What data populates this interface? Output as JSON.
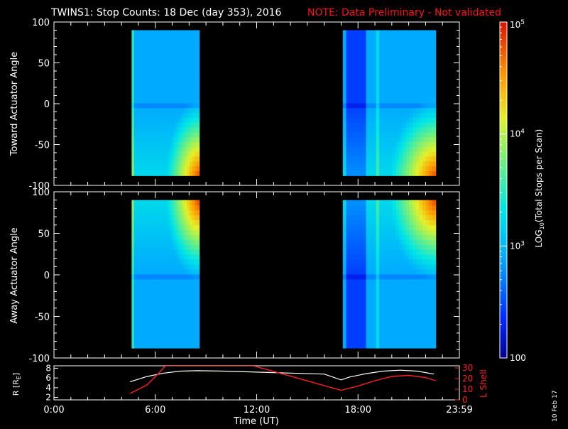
{
  "title": "TWINS1: Stop Counts: 18 Dec (day 353), 2016",
  "note": "NOTE: Data Preliminary - Not validated",
  "colors": {
    "background": "#000000",
    "axis": "#ffffff",
    "note": "#ff1010",
    "r_line": "#ffffff",
    "lshell_line": "#ff2020"
  },
  "colorbar": {
    "label": "LOG10(Total Stops per Scan)",
    "label_main": "LOG",
    "label_sub": "10",
    "label_rest": "(Total Stops per Scan)",
    "tick_labels": [
      "10",
      "10",
      "10",
      "100"
    ],
    "tick_exponents": [
      "5",
      "4",
      "3",
      ""
    ],
    "scale": "log",
    "range": [
      100,
      100000
    ]
  },
  "date_stamp": "10 Feb 17",
  "chart_data": [
    {
      "type": "heatmap",
      "panel": "top",
      "ylabel": "Toward Actuator Angle",
      "ylim": [
        -100,
        100
      ],
      "yticks": [
        "100",
        "50",
        "0",
        "-50",
        "-100"
      ],
      "xlim_hours": [
        0,
        24
      ],
      "data_blocks_hours": [
        [
          4.6,
          8.6
        ],
        [
          17.1,
          22.6
        ]
      ],
      "angle_range": [
        -88,
        90
      ],
      "description_values": "log10 stop counts approx 2.5-5, highest near -80 deg end of each block"
    },
    {
      "type": "heatmap",
      "panel": "middle",
      "ylabel": "Away Actuator Angle",
      "ylim": [
        -100,
        100
      ],
      "yticks": [
        "100",
        "50",
        "0",
        "-50",
        "-100"
      ],
      "xlim_hours": [
        0,
        24
      ],
      "data_blocks_hours": [
        [
          4.6,
          8.6
        ],
        [
          17.1,
          22.6
        ]
      ],
      "angle_range": [
        -88,
        90
      ]
    },
    {
      "type": "line",
      "panel": "bottom",
      "ylabel_left": "R [RE]",
      "ylabel_left_main": "R [R",
      "ylabel_left_sub": "E",
      "ylabel_left_end": "]",
      "ylabel_right": "L Shell",
      "yticks_left": [
        "8",
        "6",
        "4",
        "2"
      ],
      "ylim_left": [
        1.5,
        8.5
      ],
      "yticks_right": [
        "30",
        "20",
        "10",
        "0"
      ],
      "ylim_right": [
        0,
        32
      ],
      "xlabel": "Time (UT)",
      "xtick_labels": [
        "0:00",
        "6:00",
        "12:00",
        "18:00",
        "23:59"
      ],
      "x_ticks_hours": [
        0,
        6,
        12,
        18,
        24
      ],
      "series": [
        {
          "name": "R",
          "x": [
            4.5,
            5.5,
            6.5,
            7.5,
            8.5,
            10,
            12,
            14,
            16,
            17.0,
            17.5,
            18.5,
            19.5,
            20.5,
            21.5,
            22.5
          ],
          "y": [
            5.2,
            6.3,
            7.0,
            7.4,
            7.5,
            7.4,
            7.2,
            7.0,
            6.8,
            5.6,
            6.2,
            6.9,
            7.4,
            7.6,
            7.4,
            6.8
          ]
        },
        {
          "name": "L Shell",
          "x": [
            4.5,
            5.5,
            6.2,
            6.6,
            11.8,
            17.0,
            18.0,
            19.0,
            20.0,
            21.0,
            22.0,
            22.6
          ],
          "y": [
            6,
            14,
            25,
            32,
            32,
            9,
            13,
            18,
            22,
            23,
            21,
            18
          ]
        }
      ]
    }
  ]
}
